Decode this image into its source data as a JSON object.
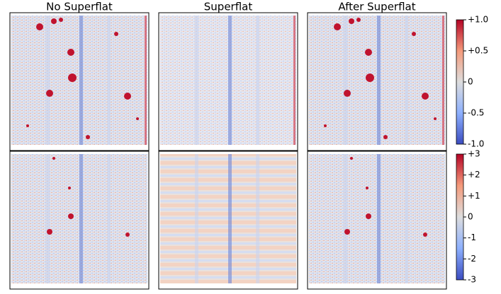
{
  "titles": [
    "No Superflat",
    "Superflat",
    "After Superflat"
  ],
  "colorbars": [
    {
      "lim": [
        -1,
        1
      ],
      "ticks": [
        {
          "value": 1,
          "label": "+1.0"
        },
        {
          "value": 0.5,
          "label": "+0.5"
        },
        0,
        -0.5,
        {
          "value": -1,
          "label": "-1.0"
        }
      ]
    },
    {
      "lim": [
        -3,
        3
      ],
      "ticks": [
        {
          "value": 3,
          "label": "+3"
        },
        {
          "value": 2,
          "label": "+2"
        },
        {
          "value": 1,
          "label": "+1"
        },
        0,
        -1,
        -2,
        -3
      ]
    }
  ]
}
